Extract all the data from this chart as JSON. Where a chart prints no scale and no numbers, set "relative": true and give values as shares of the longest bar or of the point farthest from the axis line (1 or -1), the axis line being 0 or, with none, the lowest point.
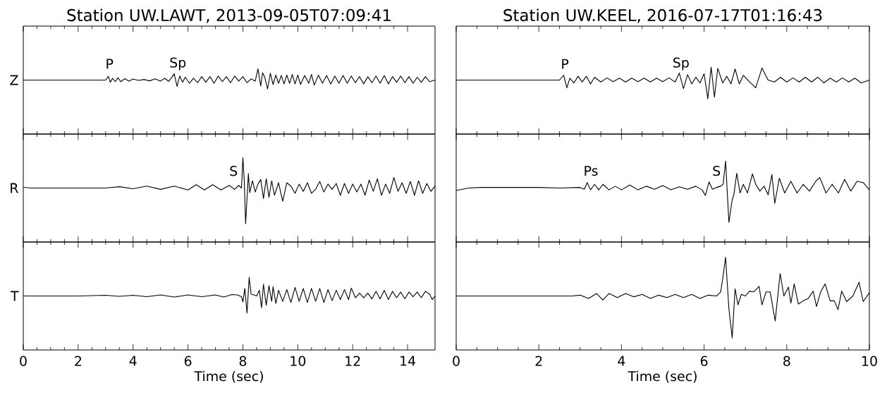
{
  "chart_data": [
    {
      "type": "line",
      "relative": true,
      "title": "Station UW.LAWT, 2013-09-05T07:09:41",
      "ylabel": "Z",
      "xlim": [
        0,
        15
      ],
      "xticks": [
        0,
        2,
        4,
        6,
        8,
        10,
        12,
        14
      ],
      "tick_labels": false,
      "x": [
        0,
        1,
        2,
        3.0,
        3.1,
        3.17,
        3.25,
        3.35,
        3.45,
        3.55,
        3.7,
        3.85,
        4.0,
        4.2,
        4.4,
        4.6,
        4.8,
        5.0,
        5.15,
        5.3,
        5.4,
        5.5,
        5.6,
        5.7,
        5.8,
        5.9,
        6.05,
        6.2,
        6.35,
        6.5,
        6.65,
        6.8,
        6.95,
        7.1,
        7.25,
        7.4,
        7.55,
        7.7,
        7.85,
        8.0,
        8.15,
        8.3,
        8.45,
        8.55,
        8.65,
        8.72,
        8.8,
        8.9,
        9.0,
        9.1,
        9.2,
        9.3,
        9.4,
        9.5,
        9.6,
        9.7,
        9.8,
        9.9,
        10.0,
        10.1,
        10.25,
        10.4,
        10.5,
        10.6,
        10.75,
        10.9,
        11.05,
        11.2,
        11.35,
        11.5,
        11.65,
        11.8,
        11.95,
        12.1,
        12.25,
        12.4,
        12.55,
        12.7,
        12.85,
        13.0,
        13.15,
        13.3,
        13.45,
        13.6,
        13.75,
        13.9,
        14.05,
        14.2,
        14.35,
        14.5,
        14.65,
        14.8,
        15
      ],
      "series": [
        {
          "color": "#000000",
          "values": [
            0.44,
            0.44,
            0.44,
            0.44,
            0.63,
            0.33,
            0.53,
            0.36,
            0.56,
            0.36,
            0.51,
            0.39,
            0.49,
            0.42,
            0.47,
            0.4,
            0.5,
            0.39,
            0.53,
            0.38,
            0.56,
            0.75,
            0.13,
            0.64,
            0.33,
            0.58,
            0.28,
            0.53,
            0.31,
            0.61,
            0.33,
            0.61,
            0.28,
            0.64,
            0.36,
            0.61,
            0.31,
            0.64,
            0.39,
            0.61,
            0.31,
            0.5,
            0.39,
            1,
            0.14,
            0.81,
            0.56,
            0,
            0.78,
            0.22,
            0.69,
            0.28,
            0.67,
            0.25,
            0.69,
            0.28,
            0.72,
            0.25,
            0.69,
            0.22,
            0.67,
            0.28,
            0.72,
            0.19,
            0.69,
            0.28,
            0.67,
            0.25,
            0.64,
            0.28,
            0.67,
            0.28,
            0.64,
            0.31,
            0.61,
            0.25,
            0.61,
            0.31,
            0.64,
            0.28,
            0.67,
            0.25,
            0.61,
            0.33,
            0.64,
            0.31,
            0.61,
            0.28,
            0.58,
            0.33,
            0.61,
            0.36,
            0.44
          ]
        }
      ],
      "annotations": [
        "P",
        "Sp"
      ]
    },
    {
      "type": "line",
      "relative": true,
      "ylabel": "R",
      "xlim": [
        0,
        15
      ],
      "xticks": [
        0,
        2,
        4,
        6,
        8,
        10,
        12,
        14
      ],
      "tick_labels": false,
      "x": [
        0,
        0.3,
        1,
        2,
        3,
        3.5,
        4,
        4.5,
        5,
        5.5,
        6,
        6.3,
        6.6,
        6.9,
        7.2,
        7.5,
        7.7,
        7.85,
        7.95,
        8.0,
        8.05,
        8.1,
        8.15,
        8.2,
        8.25,
        8.35,
        8.45,
        8.55,
        8.65,
        8.75,
        8.85,
        8.95,
        9.05,
        9.15,
        9.3,
        9.45,
        9.6,
        9.75,
        9.9,
        10.05,
        10.2,
        10.35,
        10.5,
        10.65,
        10.8,
        10.95,
        11.1,
        11.25,
        11.4,
        11.55,
        11.7,
        11.85,
        12.0,
        12.15,
        12.3,
        12.45,
        12.6,
        12.75,
        12.9,
        13.05,
        13.2,
        13.35,
        13.5,
        13.65,
        13.8,
        13.95,
        14.1,
        14.25,
        14.4,
        14.55,
        14.7,
        14.85,
        15
      ],
      "series": [
        {
          "color": "#000000",
          "values": [
            0.55,
            0.54,
            0.54,
            0.54,
            0.54,
            0.56,
            0.53,
            0.57,
            0.52,
            0.57,
            0.51,
            0.59,
            0.51,
            0.59,
            0.51,
            0.58,
            0.52,
            0.58,
            0.54,
            1,
            0.65,
            0,
            0.38,
            0.76,
            0.47,
            0.65,
            0.48,
            0.6,
            0.67,
            0.38,
            0.68,
            0.4,
            0.65,
            0.43,
            0.62,
            0.34,
            0.62,
            0.57,
            0.46,
            0.6,
            0.49,
            0.62,
            0.46,
            0.52,
            0.64,
            0.48,
            0.6,
            0.52,
            0.61,
            0.43,
            0.61,
            0.46,
            0.6,
            0.48,
            0.6,
            0.43,
            0.66,
            0.49,
            0.68,
            0.43,
            0.6,
            0.46,
            0.7,
            0.49,
            0.62,
            0.46,
            0.64,
            0.43,
            0.65,
            0.46,
            0.61,
            0.49,
            0.57
          ]
        }
      ],
      "annotations": [
        "S"
      ]
    },
    {
      "type": "line",
      "relative": true,
      "ylabel": "T",
      "xlabel": "Time (sec)",
      "xlim": [
        0,
        15
      ],
      "xticks": [
        0,
        2,
        4,
        6,
        8,
        10,
        12,
        14
      ],
      "tick_labels": "x",
      "x": [
        0,
        1,
        2,
        3,
        3.5,
        4,
        4.5,
        5,
        5.5,
        6,
        6.5,
        7,
        7.3,
        7.6,
        7.8,
        7.95,
        8.0,
        8.07,
        8.15,
        8.23,
        8.3,
        8.4,
        8.5,
        8.6,
        8.68,
        8.75,
        8.85,
        8.95,
        9.05,
        9.1,
        9.2,
        9.3,
        9.45,
        9.6,
        9.75,
        9.9,
        10.05,
        10.2,
        10.35,
        10.5,
        10.65,
        10.8,
        10.95,
        11.1,
        11.25,
        11.4,
        11.55,
        11.7,
        11.85,
        11.95,
        12.1,
        12.25,
        12.4,
        12.55,
        12.7,
        12.85,
        13.0,
        13.15,
        13.3,
        13.45,
        13.6,
        13.75,
        13.9,
        14.05,
        14.2,
        14.35,
        14.5,
        14.65,
        14.8,
        14.9,
        15
      ],
      "series": [
        {
          "color": "#000000",
          "values": [
            0.48,
            0.48,
            0.48,
            0.5,
            0.47,
            0.5,
            0.46,
            0.51,
            0.45,
            0.51,
            0.46,
            0.51,
            0.45,
            0.52,
            0.51,
            0.46,
            0.31,
            0.69,
            0,
            1,
            0.53,
            0.51,
            0.48,
            0.64,
            0.15,
            0.81,
            0.22,
            0.77,
            0.33,
            0.74,
            0.27,
            0.64,
            0.33,
            0.66,
            0.3,
            0.72,
            0.33,
            0.69,
            0.3,
            0.69,
            0.33,
            0.69,
            0.3,
            0.66,
            0.35,
            0.64,
            0.38,
            0.66,
            0.38,
            0.7,
            0.43,
            0.56,
            0.43,
            0.56,
            0.4,
            0.61,
            0.4,
            0.64,
            0.38,
            0.61,
            0.43,
            0.59,
            0.4,
            0.59,
            0.46,
            0.59,
            0.43,
            0.61,
            0.53,
            0.38,
            0.48
          ]
        }
      ]
    },
    {
      "type": "line",
      "relative": true,
      "title": "Station UW.KEEL, 2016-07-17T01:16:43",
      "xlim": [
        0,
        10
      ],
      "xticks": [
        0,
        2,
        4,
        6,
        8,
        10
      ],
      "tick_labels": false,
      "x": [
        0,
        1,
        2,
        2.5,
        2.6,
        2.68,
        2.75,
        2.85,
        2.95,
        3.05,
        3.15,
        3.25,
        3.35,
        3.5,
        3.65,
        3.8,
        3.95,
        4.1,
        4.25,
        4.4,
        4.55,
        4.7,
        4.85,
        5.0,
        5.15,
        5.3,
        5.4,
        5.5,
        5.6,
        5.7,
        5.8,
        5.9,
        6.0,
        6.09,
        6.17,
        6.25,
        6.33,
        6.45,
        6.55,
        6.65,
        6.75,
        6.85,
        6.95,
        7.1,
        7.25,
        7.4,
        7.55,
        7.7,
        7.85,
        8.0,
        8.15,
        8.3,
        8.45,
        8.6,
        8.75,
        8.9,
        9.05,
        9.2,
        9.35,
        9.5,
        9.65,
        9.8,
        10
      ],
      "series": [
        {
          "color": "#000000",
          "values": [
            0.59,
            0.59,
            0.59,
            0.59,
            0.74,
            0.35,
            0.65,
            0.5,
            0.71,
            0.53,
            0.71,
            0.47,
            0.68,
            0.53,
            0.66,
            0.54,
            0.65,
            0.53,
            0.65,
            0.54,
            0.65,
            0.53,
            0.65,
            0.54,
            0.66,
            0.53,
            0.81,
            0.32,
            0.76,
            0.47,
            0.68,
            0.5,
            0.79,
            0,
            1,
            0.05,
            0.96,
            0.5,
            0.71,
            0.47,
            0.94,
            0.47,
            0.74,
            0.53,
            0.35,
            0.97,
            0.59,
            0.53,
            0.68,
            0.53,
            0.66,
            0.53,
            0.68,
            0.53,
            0.68,
            0.5,
            0.65,
            0.53,
            0.66,
            0.53,
            0.65,
            0.5,
            0.59
          ]
        }
      ],
      "annotations": [
        "P",
        "Sp"
      ]
    },
    {
      "type": "line",
      "relative": true,
      "xlim": [
        0,
        10
      ],
      "xticks": [
        0,
        2,
        4,
        6,
        8,
        10
      ],
      "tick_labels": false,
      "x": [
        0,
        0.3,
        0.6,
        1,
        1.5,
        2,
        2.5,
        3.0,
        3.1,
        3.17,
        3.25,
        3.35,
        3.45,
        3.55,
        3.7,
        3.85,
        4.0,
        4.2,
        4.4,
        4.6,
        4.8,
        5.0,
        5.2,
        5.4,
        5.6,
        5.8,
        5.95,
        6.03,
        6.12,
        6.2,
        6.3,
        6.4,
        6.46,
        6.52,
        6.6,
        6.68,
        6.72,
        6.79,
        6.87,
        6.95,
        7.05,
        7.17,
        7.25,
        7.35,
        7.45,
        7.55,
        7.64,
        7.71,
        7.82,
        7.95,
        8.1,
        8.25,
        8.4,
        8.55,
        8.7,
        8.8,
        8.95,
        9.1,
        9.25,
        9.4,
        9.55,
        9.7,
        9.85,
        10
      ],
      "series": [
        {
          "color": "#000000",
          "values": [
            0.52,
            0.56,
            0.57,
            0.57,
            0.57,
            0.57,
            0.56,
            0.57,
            0.54,
            0.65,
            0.53,
            0.62,
            0.53,
            0.62,
            0.53,
            0.59,
            0.53,
            0.61,
            0.53,
            0.59,
            0.54,
            0.6,
            0.53,
            0.58,
            0.54,
            0.59,
            0.53,
            0.44,
            0.66,
            0.54,
            0.57,
            0.59,
            0.62,
            1,
            0,
            0.37,
            0.45,
            0.8,
            0.48,
            0.62,
            0.48,
            0.79,
            0.62,
            0.51,
            0.59,
            0.45,
            0.78,
            0.31,
            0.72,
            0.48,
            0.67,
            0.48,
            0.62,
            0.51,
            0.67,
            0.73,
            0.48,
            0.62,
            0.48,
            0.7,
            0.51,
            0.67,
            0.65,
            0.53
          ]
        }
      ],
      "annotations": [
        "Ps",
        "S"
      ]
    },
    {
      "type": "line",
      "relative": true,
      "xlabel": "Time (sec)",
      "xlim": [
        0,
        10
      ],
      "xticks": [
        0,
        2,
        4,
        6,
        8,
        10
      ],
      "tick_labels": "x",
      "x": [
        0,
        1,
        2,
        2.8,
        3.0,
        3.2,
        3.4,
        3.55,
        3.7,
        3.9,
        4.1,
        4.3,
        4.5,
        4.7,
        4.9,
        5.1,
        5.3,
        5.5,
        5.7,
        5.9,
        6.1,
        6.3,
        6.4,
        6.46,
        6.52,
        6.6,
        6.68,
        6.75,
        6.82,
        6.9,
        7.0,
        7.1,
        7.2,
        7.33,
        7.4,
        7.5,
        7.6,
        7.72,
        7.84,
        7.93,
        8.04,
        8.1,
        8.18,
        8.28,
        8.4,
        8.52,
        8.64,
        8.72,
        8.82,
        8.93,
        9.05,
        9.15,
        9.24,
        9.33,
        9.45,
        9.6,
        9.75,
        9.85,
        10
      ],
      "series": [
        {
          "color": "#000000",
          "values": [
            0.52,
            0.52,
            0.52,
            0.52,
            0.53,
            0.49,
            0.55,
            0.47,
            0.55,
            0.5,
            0.55,
            0.51,
            0.54,
            0.49,
            0.53,
            0.5,
            0.54,
            0.5,
            0.54,
            0.49,
            0.53,
            0.52,
            0.57,
            0.77,
            1,
            0.36,
            0,
            0.61,
            0.41,
            0.54,
            0.52,
            0.58,
            0.57,
            0.64,
            0.41,
            0.57,
            0.57,
            0.21,
            0.8,
            0.52,
            0.63,
            0.43,
            0.67,
            0.42,
            0.46,
            0.49,
            0.58,
            0.39,
            0.57,
            0.67,
            0.46,
            0.46,
            0.35,
            0.58,
            0.45,
            0.52,
            0.69,
            0.45,
            0.56
          ]
        }
      ]
    }
  ]
}
